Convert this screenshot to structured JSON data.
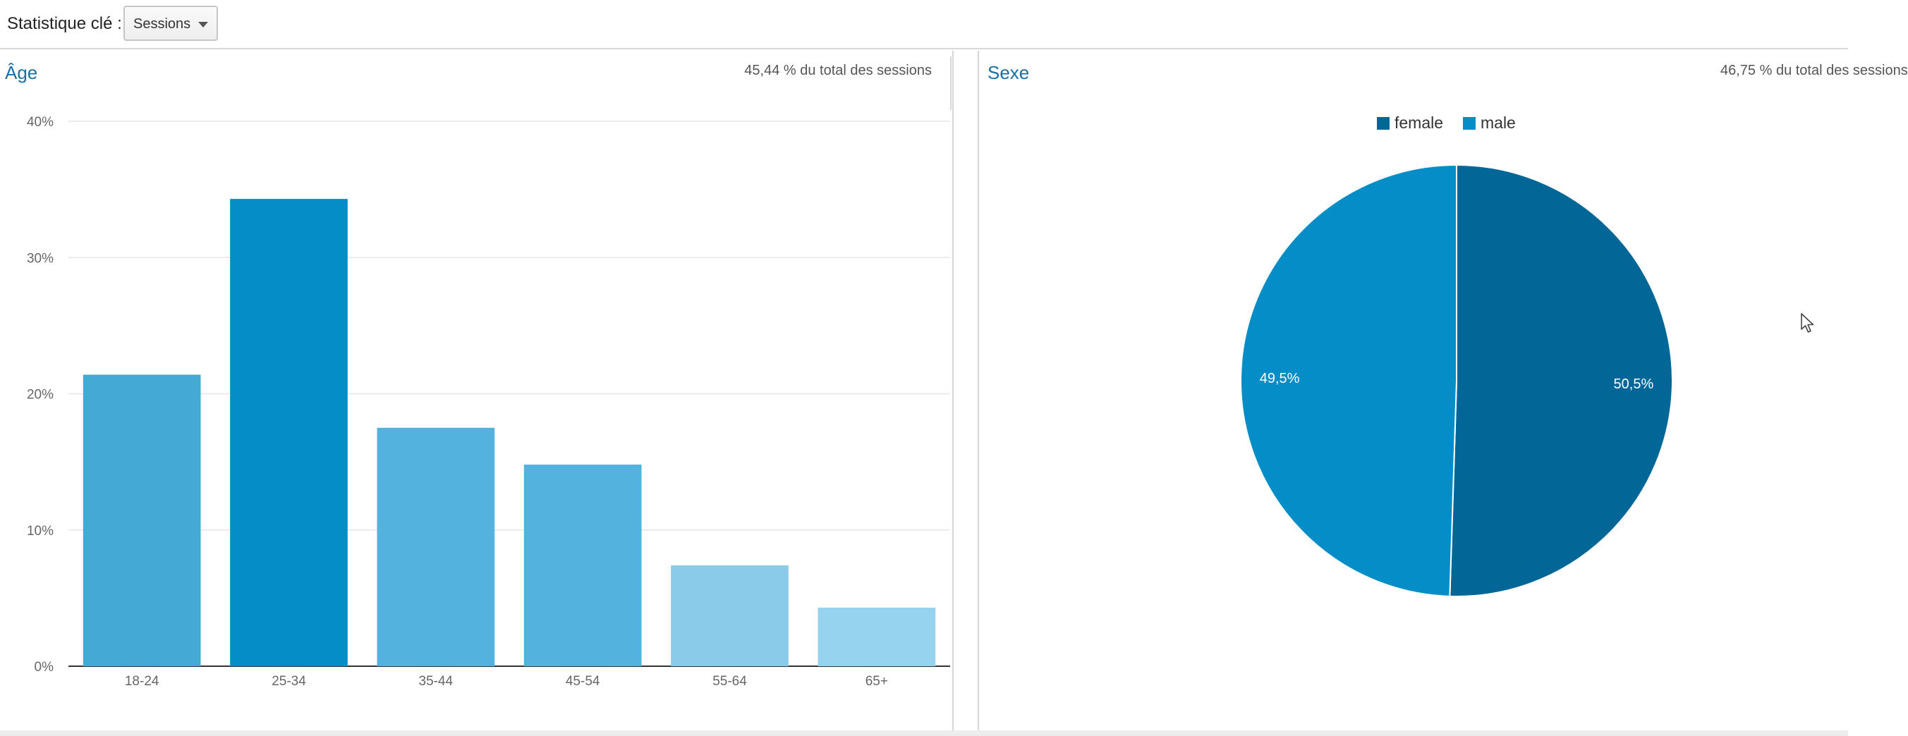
{
  "toolbar": {
    "metric_label": "Statistique clé :",
    "metric_select": {
      "selected": "Sessions"
    }
  },
  "age_panel": {
    "title": "Âge",
    "pct_of_total": "45,44 % du total des sessions"
  },
  "gender_panel": {
    "title": "Sexe",
    "pct_of_total": "46,75 % du total des sessions"
  },
  "icons": [
    "chevron-down-icon",
    "mouse-cursor-icon"
  ],
  "chart_data": [
    {
      "type": "bar",
      "categories": [
        "18-24",
        "25-34",
        "35-44",
        "45-54",
        "55-64",
        "65+"
      ],
      "values": [
        21.4,
        34.3,
        17.5,
        14.8,
        7.4,
        4.3
      ],
      "ylim": [
        0,
        40
      ],
      "yticks": [
        "0%",
        "10%",
        "20%",
        "30%",
        "40%"
      ],
      "grid": true,
      "colors": [
        "#45a9d6",
        "#058dc7",
        "#54b3de",
        "#54b3de",
        "#89cbe8",
        "#96d3ee"
      ]
    },
    {
      "type": "pie",
      "series": [
        {
          "name": "female",
          "value": 50.5,
          "label": "50,5%",
          "color": "#026797"
        },
        {
          "name": "male",
          "value": 49.5,
          "label": "49,5%",
          "color": "#058dc7"
        }
      ],
      "legend": "top"
    }
  ]
}
